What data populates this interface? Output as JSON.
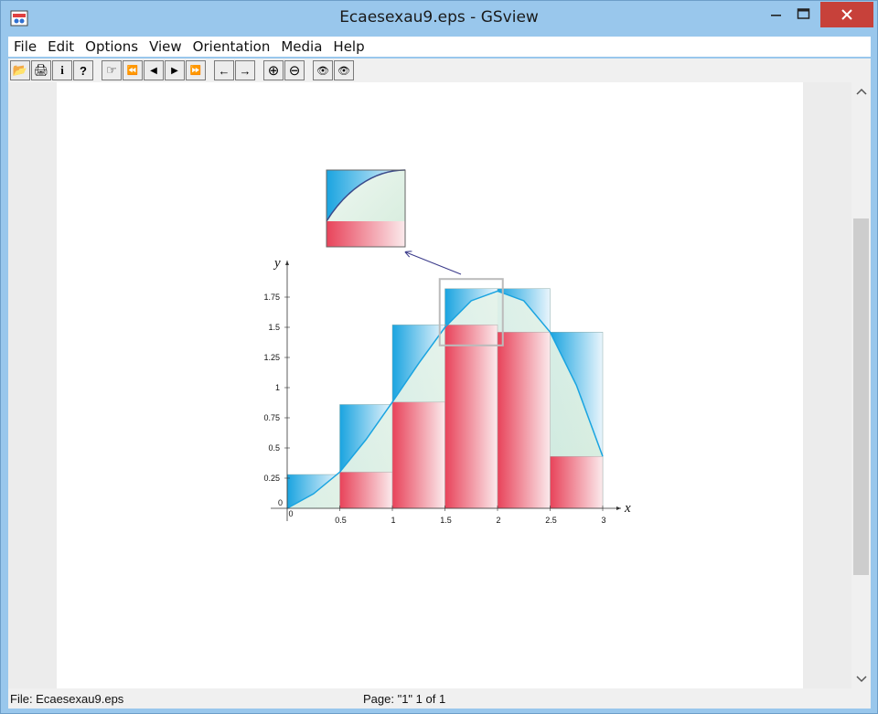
{
  "window": {
    "title": "Ecaesexau9.eps - GSview"
  },
  "menu": {
    "items": [
      "File",
      "Edit",
      "Options",
      "View",
      "Orientation",
      "Media",
      "Help"
    ]
  },
  "toolbar": {
    "buttons": [
      {
        "name": "open-icon",
        "glyph": "📂"
      },
      {
        "name": "print-icon",
        "glyph": "🖨"
      },
      {
        "name": "info-icon",
        "glyph": "i"
      },
      {
        "name": "help-icon",
        "glyph": "?"
      },
      {
        "name": "goto-page-icon",
        "glyph": "☞"
      },
      {
        "name": "first-page-icon",
        "glyph": "⏪"
      },
      {
        "name": "prev-page-icon",
        "glyph": "◀"
      },
      {
        "name": "next-page-icon",
        "glyph": "▶"
      },
      {
        "name": "last-page-icon",
        "glyph": "⏩"
      },
      {
        "name": "back-icon",
        "glyph": "←"
      },
      {
        "name": "forward-icon",
        "glyph": "→"
      },
      {
        "name": "zoom-in-icon",
        "glyph": "⊕"
      },
      {
        "name": "zoom-out-icon",
        "glyph": "⊖"
      },
      {
        "name": "find-icon",
        "glyph": "👁"
      },
      {
        "name": "find-next-icon",
        "glyph": "👁"
      }
    ]
  },
  "status": {
    "file": "File: Ecaesexau9.eps",
    "page": "Page: \"1\"  1 of 1"
  },
  "chart_data": {
    "type": "bar",
    "description_hidden": false,
    "xlabel": "x",
    "ylabel": "y",
    "x_ticks": [
      "0",
      "0.5",
      "1",
      "1.5",
      "2",
      "2.5",
      "3"
    ],
    "y_ticks": [
      "0",
      "0.25",
      "0.5",
      "0.75",
      "1",
      "1.25",
      "1.5",
      "1.75"
    ],
    "xlim": [
      0,
      3
    ],
    "ylim": [
      0,
      1.75
    ],
    "bin_width": 0.5,
    "series": [
      {
        "name": "",
        "values": [
          0.0,
          0.3,
          0.88,
          1.52,
          1.46,
          0.43
        ]
      },
      {
        "name": "",
        "values": [
          0.28,
          0.86,
          1.52,
          1.82,
          1.82,
          1.46
        ]
      }
    ],
    "curve": {
      "x": [
        0,
        0.25,
        0.5,
        0.75,
        1.0,
        1.25,
        1.5,
        1.75,
        2.0,
        2.25,
        2.5,
        2.75,
        3.0
      ],
      "y": [
        0.0,
        0.12,
        0.3,
        0.57,
        0.88,
        1.2,
        1.5,
        1.72,
        1.8,
        1.72,
        1.46,
        1.02,
        0.43
      ]
    },
    "colors": {
      "lower": "#e8435a",
      "upper": "#1aa4e0",
      "curve": "#1aa4e0",
      "fill_under": "#d8eedf"
    }
  }
}
